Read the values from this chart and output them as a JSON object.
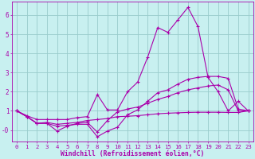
{
  "background_color": "#c8f0f0",
  "grid_color": "#99cccc",
  "line_color": "#aa00aa",
  "xlabel": "Windchill (Refroidissement éolien,°C)",
  "xlim": [
    -0.5,
    23.5
  ],
  "ylim": [
    -0.6,
    6.7
  ],
  "yticks": [
    0,
    1,
    2,
    3,
    4,
    5,
    6
  ],
  "ytick_labels": [
    "-0",
    "1",
    "2",
    "3",
    "4",
    "5",
    "6"
  ],
  "xticks": [
    0,
    1,
    2,
    3,
    4,
    5,
    6,
    7,
    8,
    9,
    10,
    11,
    12,
    13,
    14,
    15,
    16,
    17,
    18,
    19,
    20,
    21,
    22,
    23
  ],
  "series": [
    [
      1.0,
      0.75,
      0.55,
      0.55,
      0.55,
      0.55,
      0.65,
      0.7,
      1.85,
      1.05,
      1.05,
      2.0,
      2.5,
      3.8,
      5.35,
      5.1,
      5.75,
      6.4,
      5.4,
      2.75,
      2.0,
      1.0,
      1.5,
      1.0
    ],
    [
      1.0,
      0.7,
      0.35,
      0.35,
      0.2,
      0.25,
      0.3,
      0.3,
      -0.35,
      -0.05,
      0.15,
      0.8,
      1.05,
      1.5,
      1.95,
      2.1,
      2.4,
      2.65,
      2.75,
      2.8,
      2.8,
      2.7,
      1.1,
      1.0
    ],
    [
      1.0,
      0.7,
      0.35,
      0.35,
      -0.05,
      0.2,
      0.35,
      0.4,
      -0.1,
      0.5,
      0.95,
      1.1,
      1.2,
      1.4,
      1.6,
      1.75,
      1.95,
      2.1,
      2.2,
      2.3,
      2.35,
      2.1,
      1.0,
      1.0
    ],
    [
      1.0,
      0.7,
      0.35,
      0.4,
      0.3,
      0.35,
      0.4,
      0.5,
      0.55,
      0.6,
      0.7,
      0.72,
      0.75,
      0.8,
      0.85,
      0.88,
      0.9,
      0.92,
      0.93,
      0.93,
      0.93,
      0.92,
      0.92,
      1.0
    ]
  ],
  "figsize": [
    3.2,
    2.0
  ],
  "dpi": 100
}
